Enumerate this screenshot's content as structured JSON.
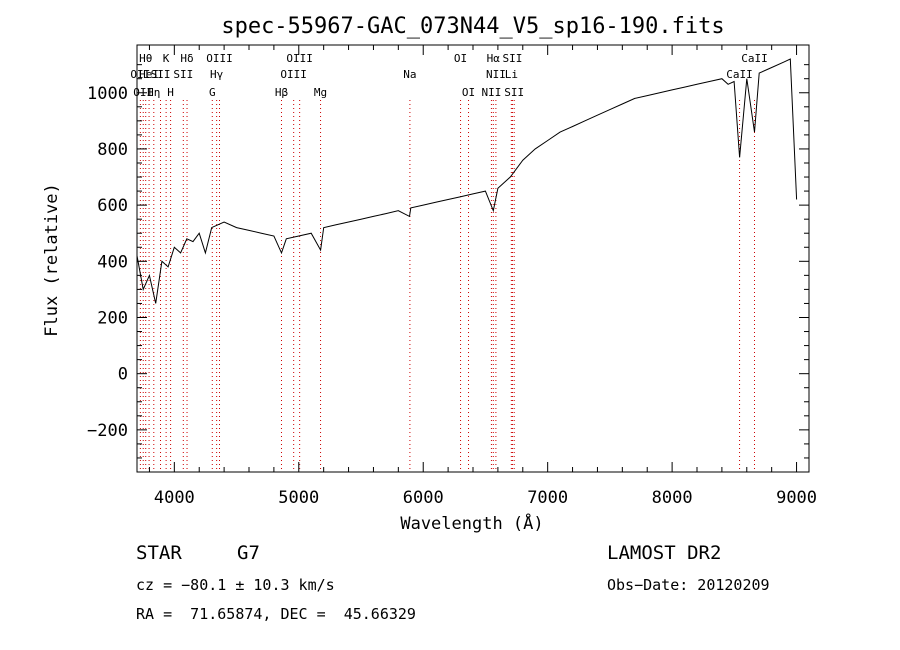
{
  "chart_data": {
    "type": "line",
    "title": "spec-55967-GAC_073N44_V5_sp16-190.fits",
    "xlabel": "Wavelength (Å)",
    "ylabel": "Flux (relative)",
    "xlim": [
      3700,
      9100
    ],
    "ylim": [
      -350,
      1170
    ],
    "x_ticks": [
      4000,
      5000,
      6000,
      7000,
      8000,
      9000
    ],
    "y_ticks": [
      -200,
      0,
      200,
      400,
      600,
      800,
      1000
    ],
    "line_color": "#000000",
    "marker_color": "#cc0000",
    "series": [
      {
        "x": [
          3700,
          3750,
          3800,
          3850,
          3900,
          3950,
          4000,
          4050,
          4100,
          4150,
          4200,
          4250,
          4300,
          4350,
          4400,
          4500,
          4600,
          4700,
          4800,
          4861,
          4900,
          5000,
          5100,
          5175,
          5200,
          5300,
          5400,
          5500,
          5600,
          5700,
          5800,
          5890,
          5900,
          6000,
          6100,
          6200,
          6300,
          6400,
          6500,
          6563,
          6600,
          6700,
          6800,
          6900,
          7000,
          7100,
          7200,
          7300,
          7400,
          7500,
          7600,
          7700,
          7800,
          7900,
          8000,
          8100,
          8200,
          8300,
          8400,
          8450,
          8498,
          8542,
          8600,
          8662,
          8700,
          8800,
          8900,
          8950,
          9000
        ],
        "y": [
          420,
          300,
          350,
          250,
          400,
          380,
          450,
          430,
          480,
          470,
          500,
          430,
          520,
          530,
          540,
          520,
          510,
          500,
          490,
          430,
          480,
          490,
          500,
          440,
          520,
          530,
          540,
          550,
          560,
          570,
          580,
          560,
          590,
          600,
          610,
          620,
          630,
          640,
          650,
          580,
          660,
          700,
          760,
          800,
          830,
          860,
          880,
          900,
          920,
          940,
          960,
          980,
          990,
          1000,
          1010,
          1020,
          1030,
          1040,
          1050,
          1030,
          1040,
          770,
          1050,
          860,
          1070,
          1090,
          1110,
          1120,
          620
        ]
      }
    ],
    "line_markers": [
      {
        "wave": 3727,
        "label": "OII",
        "row": 2
      },
      {
        "wave": 3750,
        "label": "OII",
        "row": 3
      },
      {
        "wave": 3770,
        "label": "Hθ",
        "row": 1
      },
      {
        "wave": 3797,
        "label": "HeI",
        "row": 2
      },
      {
        "wave": 3835,
        "label": "Hη",
        "row": 3
      },
      {
        "wave": 3889,
        "label": "SII",
        "row": 2
      },
      {
        "wave": 3934,
        "label": "K",
        "row": 1
      },
      {
        "wave": 3970,
        "label": "H",
        "row": 3
      },
      {
        "wave": 4072,
        "label": "SII",
        "row": 2
      },
      {
        "wave": 4102,
        "label": "Hδ",
        "row": 1
      },
      {
        "wave": 4305,
        "label": "G",
        "row": 3
      },
      {
        "wave": 4340,
        "label": "Hγ",
        "row": 2
      },
      {
        "wave": 4363,
        "label": "OIII",
        "row": 1
      },
      {
        "wave": 4861,
        "label": "Hβ",
        "row": 3
      },
      {
        "wave": 4959,
        "label": "OIII",
        "row": 2
      },
      {
        "wave": 5007,
        "label": "OIII",
        "row": 1
      },
      {
        "wave": 5175,
        "label": "Mg",
        "row": 3
      },
      {
        "wave": 5893,
        "label": "Na",
        "row": 2
      },
      {
        "wave": 6300,
        "label": "OI",
        "row": 1
      },
      {
        "wave": 6364,
        "label": "OI",
        "row": 3
      },
      {
        "wave": 6548,
        "label": "NII",
        "row": 3
      },
      {
        "wave": 6563,
        "label": "Hα",
        "row": 1
      },
      {
        "wave": 6584,
        "label": "NII",
        "row": 2
      },
      {
        "wave": 6708,
        "label": "Li",
        "row": 2
      },
      {
        "wave": 6717,
        "label": "SII",
        "row": 1
      },
      {
        "wave": 6731,
        "label": "SII",
        "row": 3
      },
      {
        "wave": 8542,
        "label": "CaII",
        "row": 2
      },
      {
        "wave": 8662,
        "label": "CaII",
        "row": 1
      }
    ]
  },
  "info": {
    "object_type": "STAR",
    "subclass": "G7",
    "cz": "cz = −80.1 ± 10.3 km/s",
    "coords": "RA =  71.65874, DEC =  45.66329",
    "survey": "LAMOST DR2",
    "obs_date": "Obs−Date: 20120209"
  }
}
